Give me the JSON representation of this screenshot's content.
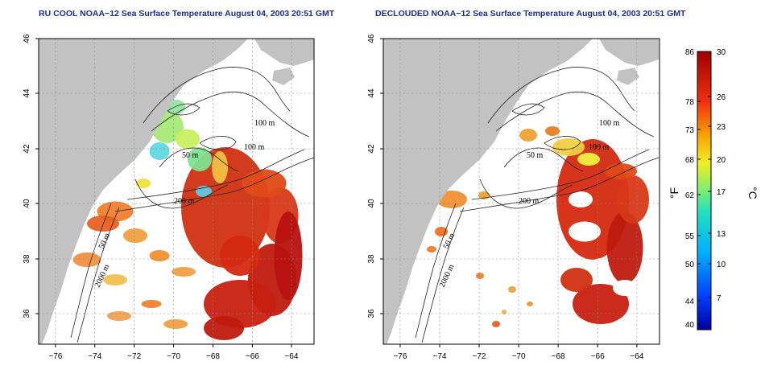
{
  "panels": [
    {
      "title": "RU COOL NOAA−12 Sea Surface Temperature August 04, 2003 20:51 GMT",
      "variant": "raw"
    },
    {
      "title": "DECLOUDED NOAA−12 Sea Surface Temperature August 04, 2003 20:51 GMT",
      "variant": "declouded"
    }
  ],
  "axes": {
    "lat_ticks": [
      "46",
      "44",
      "42",
      "40",
      "38",
      "36"
    ],
    "lon_ticks": [
      "−76",
      "−74",
      "−72",
      "−70",
      "−68",
      "−66",
      "−64"
    ],
    "lat_range": [
      35,
      46
    ],
    "lon_range": [
      -77,
      -63
    ]
  },
  "contour_labels": [
    "100 m",
    "100 m",
    "50 m",
    "200 m",
    "50 m",
    "2000 m"
  ],
  "colorbar": {
    "fahrenheit_ticks": [
      "86",
      "78",
      "73",
      "68",
      "62",
      "55",
      "50",
      "44",
      "40"
    ],
    "celsius_ticks": [
      "30",
      "26",
      "23",
      "20",
      "17",
      "13",
      "10",
      "7"
    ],
    "fahrenheit_unit": "°F",
    "celsius_unit": "°C",
    "range_celsius": [
      4.4,
      30
    ]
  },
  "colors": {
    "land": "#c2c2c2",
    "title": "#1a2a9a",
    "warm": "#d42a10",
    "hot": "#b50f0f",
    "mid": "#f0a020",
    "cool": "#60d8a0",
    "cold": "#3060e0"
  }
}
